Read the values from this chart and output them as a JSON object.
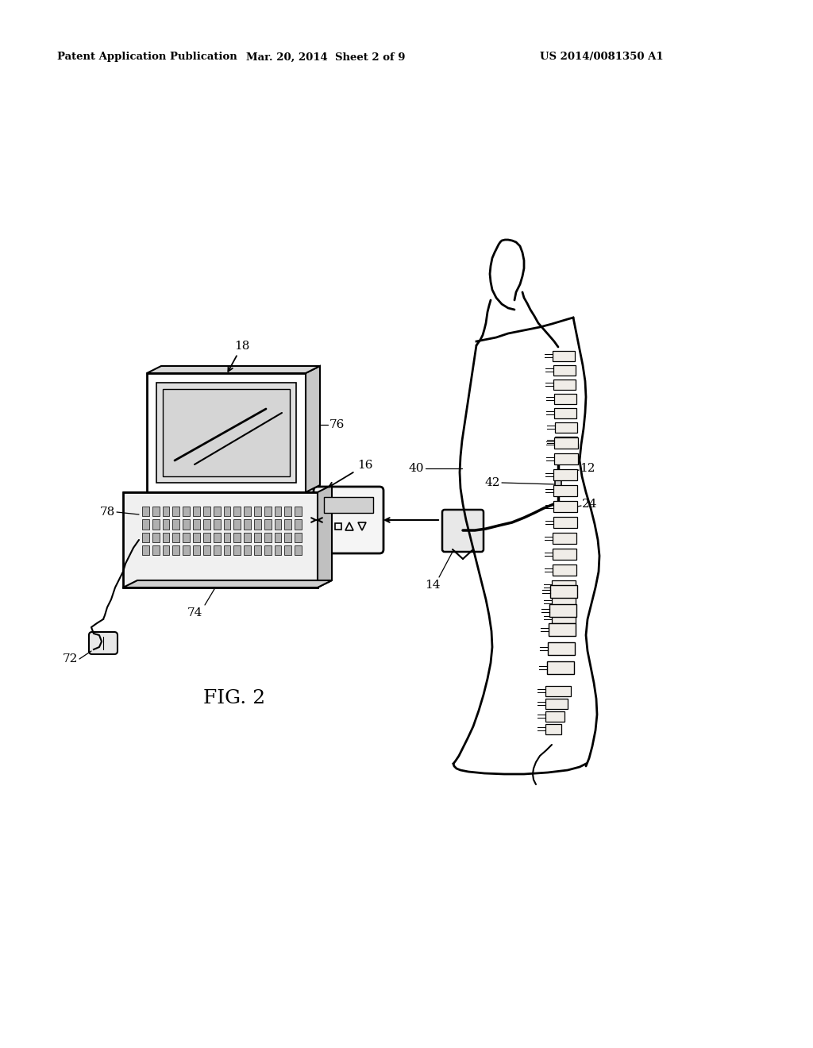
{
  "header_left": "Patent Application Publication",
  "header_center": "Mar. 20, 2014  Sheet 2 of 9",
  "header_right": "US 2014/0081350 A1",
  "bg_color": "#ffffff",
  "fig_label": "FIG. 2"
}
